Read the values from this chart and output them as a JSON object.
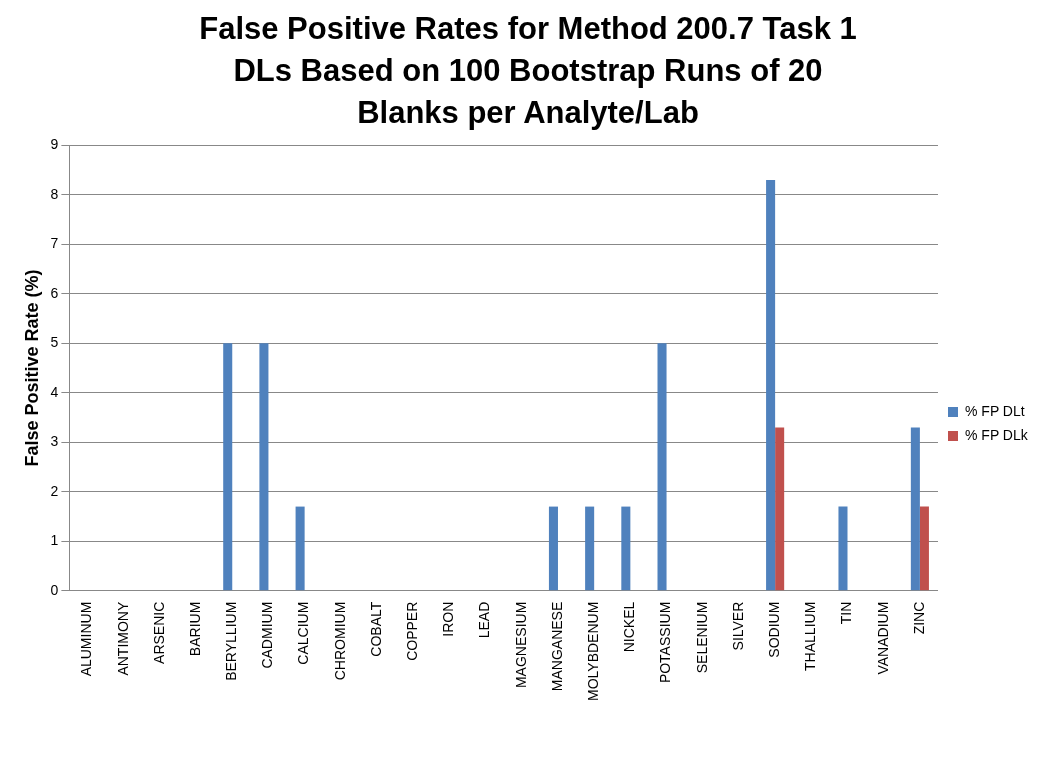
{
  "chart_data": {
    "type": "bar",
    "title": "False Positive Rates for Method 200.7 Task 1 DLs Based on 100 Bootstrap Runs of 20 Blanks per Analyte/Lab",
    "ylabel": "False Positive Rate (%)",
    "categories": [
      "ALUMINUM",
      "ANTIMONY",
      "ARSENIC",
      "BARIUM",
      "BERYLLIUM",
      "CADMIUM",
      "CALCIUM",
      "CHROMIUM",
      "COBALT",
      "COPPER",
      "IRON",
      "LEAD",
      "MAGNESIUM",
      "MANGANESE",
      "MOLYBDENUM",
      "NICKEL",
      "POTASSIUM",
      "SELENIUM",
      "SILVER",
      "SODIUM",
      "THALLIUM",
      "TIN",
      "VANADIUM",
      "ZINC"
    ],
    "series": [
      {
        "name": "% FP DLt",
        "color": "#4f81bd",
        "values": [
          0,
          0,
          0,
          0,
          5,
          5,
          1.7,
          0,
          0,
          0,
          0,
          0,
          0,
          1.7,
          1.7,
          1.7,
          5,
          0,
          0,
          8.3,
          0,
          1.7,
          0,
          3.3
        ]
      },
      {
        "name": "% FP DLk",
        "color": "#c0504d",
        "values": [
          0,
          0,
          0,
          0,
          0,
          0,
          0,
          0,
          0,
          0,
          0,
          0,
          0,
          0,
          0,
          0,
          0,
          0,
          0,
          3.3,
          0,
          0,
          0,
          1.7
        ]
      }
    ],
    "ylim": [
      0,
      9
    ],
    "yticks": [
      0,
      1,
      2,
      3,
      4,
      5,
      6,
      7,
      8,
      9
    ],
    "grid": "y",
    "legend": "right"
  }
}
